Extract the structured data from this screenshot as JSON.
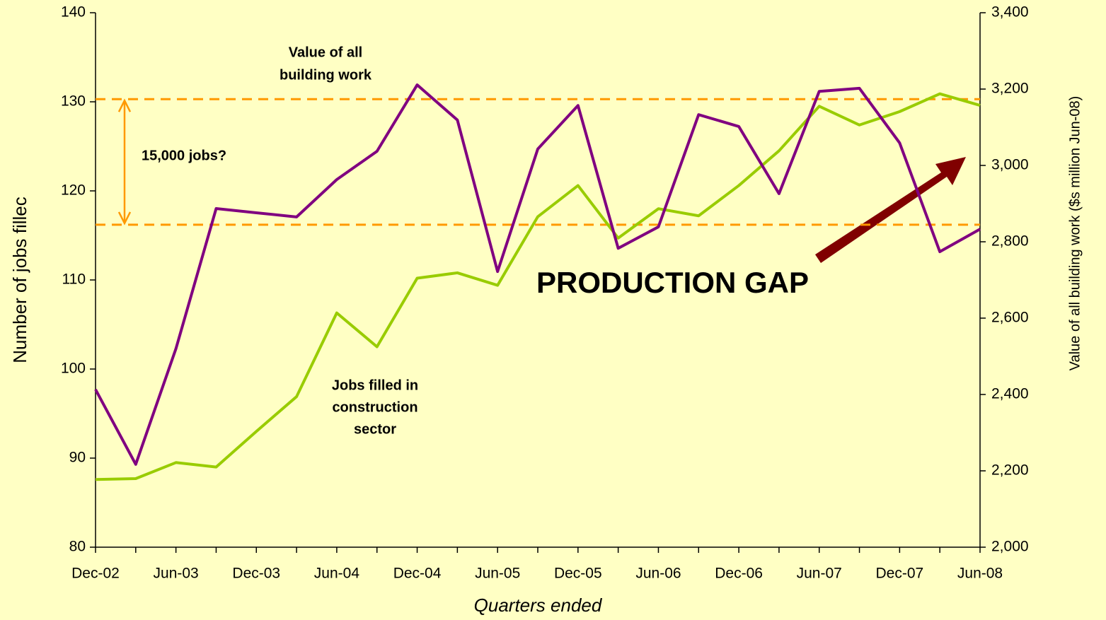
{
  "chart_data": {
    "type": "line",
    "xlabel": "Quarters ended",
    "ylabel": "Number of jobs fillec",
    "y2label": "Value of all building work ($s million Jun-08)",
    "categories": [
      "Dec-02",
      null,
      "Jun-03",
      null,
      "Dec-03",
      null,
      "Jun-04",
      null,
      "Dec-04",
      null,
      "Jun-05",
      null,
      "Dec-05",
      null,
      "Jun-06",
      null,
      "Dec-06",
      null,
      "Jun-07",
      null,
      "Dec-07",
      null,
      "Jun-08"
    ],
    "series": [
      {
        "color": "#99cc00",
        "axis": "y",
        "values": [
          87.6,
          87.7,
          89.5,
          89.0,
          93.0,
          96.9,
          106.3,
          102.5,
          110.2,
          110.8,
          109.4,
          117.1,
          120.6,
          114.7,
          118.0,
          117.2,
          120.6,
          124.5,
          129.5,
          127.4,
          128.9,
          130.9,
          129.6
        ]
      },
      {
        "color": "#800080",
        "axis": "y2",
        "values": [
          2413,
          2217,
          2520,
          2887,
          2876,
          2865,
          2963,
          3037,
          3211,
          3119,
          2722,
          3043,
          3157,
          2783,
          2839,
          3133,
          3102,
          2926,
          3194,
          3202,
          3059,
          2774,
          2833
        ]
      }
    ],
    "ylim": [
      80,
      140
    ],
    "yticks": [
      80,
      90,
      100,
      110,
      120,
      130,
      140
    ],
    "y2lim": [
      2000,
      3400
    ],
    "y2ticks": [
      {
        "value": 2000,
        "label": "2,000"
      },
      {
        "value": 2200,
        "label": "2,200"
      },
      {
        "value": 2400,
        "label": "2,400"
      },
      {
        "value": 2600,
        "label": "2,600"
      },
      {
        "value": 2800,
        "label": "2,800"
      },
      {
        "value": 3000,
        "label": "3,000"
      },
      {
        "value": 3200,
        "label": "3,200"
      },
      {
        "value": 3400,
        "label": "3,400"
      }
    ],
    "reference_lines": {
      "color": "#ff9900",
      "values": [
        130.3,
        116.2
      ]
    },
    "annotations": {
      "value_label": [
        "Value of all",
        "building work"
      ],
      "jobs_label": [
        "Jobs filled in",
        "construction",
        "sector"
      ],
      "gap_note": "15,000 jobs?",
      "headline": "PRODUCTION GAP"
    }
  }
}
